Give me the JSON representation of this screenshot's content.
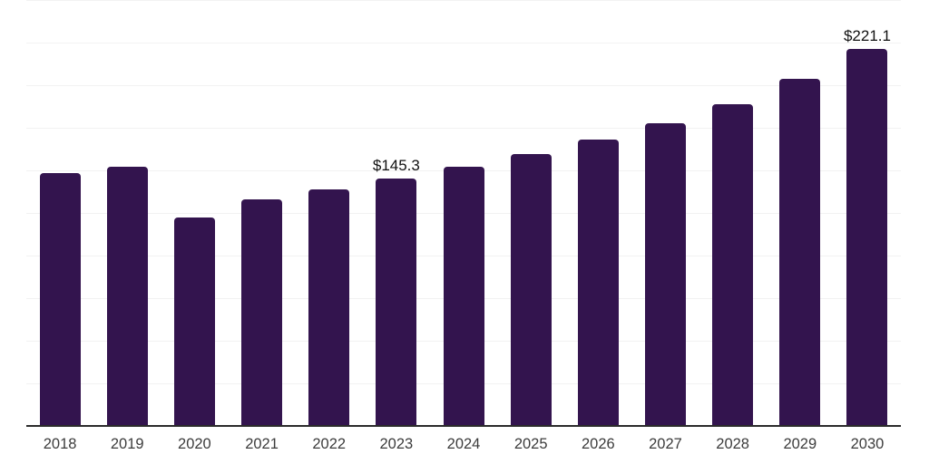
{
  "chart_data": {
    "type": "bar",
    "title": "",
    "xlabel": "",
    "ylabel": "",
    "categories": [
      "2018",
      "2019",
      "2020",
      "2021",
      "2022",
      "2023",
      "2024",
      "2025",
      "2026",
      "2027",
      "2028",
      "2029",
      "2030"
    ],
    "values": [
      148.4,
      152.1,
      122.3,
      133.0,
      138.8,
      145.3,
      152.1,
      159.6,
      168.1,
      177.7,
      188.8,
      203.7,
      221.1
    ],
    "data_labels": [
      null,
      null,
      null,
      null,
      null,
      "$145.3",
      null,
      null,
      null,
      null,
      null,
      null,
      "$221.1"
    ],
    "ylim": [
      0,
      250
    ],
    "grid": {
      "horizontal": true,
      "interval": 25,
      "color": "#f2f2f2"
    },
    "legend": "none",
    "colors": {
      "bar": "#33144e",
      "axis_line": "#2b2b2b",
      "tick_label": "#3c3c3c",
      "data_label": "#111111",
      "background": "#ffffff"
    }
  }
}
